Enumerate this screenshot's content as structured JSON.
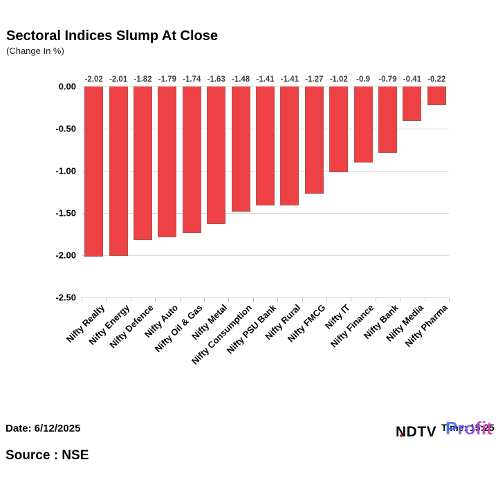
{
  "header": {
    "title": "Sectoral Indices Slump At Close",
    "subtitle": "(Change In %)"
  },
  "chart_data": {
    "type": "bar",
    "title": "Sectoral Indices Slump At Close",
    "subtitle": "(Change In %)",
    "categories": [
      "Nifty Realty",
      "Nifty Energy",
      "Nifty Defence",
      "Nifty Auto",
      "Nifty Oil & Gas",
      "Nifty Metal",
      "Nifty Consumption",
      "Nifty PSU Bank",
      "Nifty Rural",
      "Nifty FMCG",
      "Nifty IT",
      "Nifty Finance",
      "Nifty Bank",
      "Nifty Media",
      "Nifty Pharma"
    ],
    "values": [
      -2.02,
      -2.01,
      -1.82,
      -1.79,
      -1.74,
      -1.63,
      -1.48,
      -1.41,
      -1.41,
      -1.27,
      -1.02,
      -0.9,
      -0.79,
      -0.41,
      -0.22
    ],
    "value_labels": [
      "-2.02",
      "-2.01",
      "-1.82",
      "-1.79",
      "-1.74",
      "-1.63",
      "-1.48",
      "-1.41",
      "-1.41",
      "-1.27",
      "-1.02",
      "-0.9",
      "-0.79",
      "-0.41",
      "-0.22"
    ],
    "xlabel": "",
    "ylabel": "",
    "ylim": [
      -2.5,
      0
    ],
    "y_ticks": [
      "0.00",
      "-0.50",
      "-1.00",
      "-1.50",
      "-2.00",
      "-2.50"
    ],
    "grid": true,
    "legend": false,
    "bar_color": "#ee4145",
    "bar_border_color": "#a6594a"
  },
  "footer": {
    "date_label": "Date: 6/12/2025",
    "source_label": "Source : NSE"
  },
  "logo": {
    "ndtv_text": "NDTV",
    "time_text": "Time: 15:25",
    "profit_text": "Profit"
  }
}
